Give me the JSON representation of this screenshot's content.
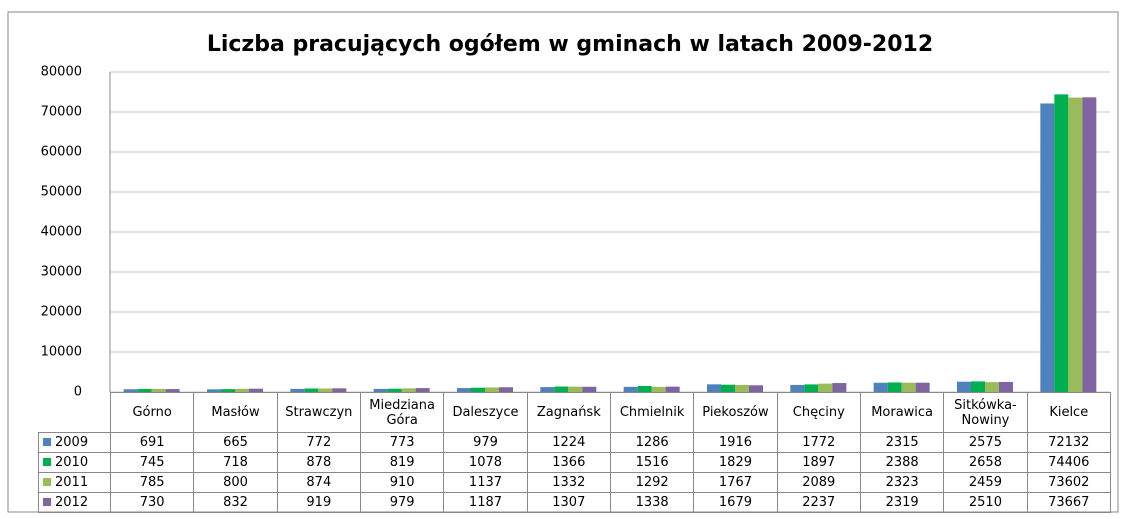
{
  "chart_data": {
    "type": "bar",
    "title": "Liczba pracujących ogółem w gminach w latach 2009-2012",
    "categories": [
      "Górno",
      "Masłów",
      "Strawczyn",
      "Miedziana Góra",
      "Daleszyce",
      "Zagnańsk",
      "Chmielnik",
      "Piekoszów",
      "Chęciny",
      "Morawica",
      "Sitkówka-Nowiny",
      "Kielce"
    ],
    "series": [
      {
        "name": "2009",
        "color": "#4f81bd",
        "values": [
          691,
          665,
          772,
          773,
          979,
          1224,
          1286,
          1916,
          1772,
          2315,
          2575,
          72132
        ]
      },
      {
        "name": "2010",
        "color": "#00b050",
        "values": [
          745,
          718,
          878,
          819,
          1078,
          1366,
          1516,
          1829,
          1897,
          2388,
          2658,
          74406
        ]
      },
      {
        "name": "2011",
        "color": "#9bbb59",
        "values": [
          785,
          800,
          874,
          910,
          1137,
          1332,
          1292,
          1767,
          2089,
          2323,
          2459,
          73602
        ]
      },
      {
        "name": "2012",
        "color": "#8064a2",
        "values": [
          730,
          832,
          919,
          979,
          1187,
          1307,
          1338,
          1679,
          2237,
          2319,
          2510,
          73667
        ]
      }
    ],
    "ylim": [
      0,
      80000
    ],
    "yticks": [
      0,
      10000,
      20000,
      30000,
      40000,
      50000,
      60000,
      70000,
      80000
    ],
    "grid": true
  }
}
